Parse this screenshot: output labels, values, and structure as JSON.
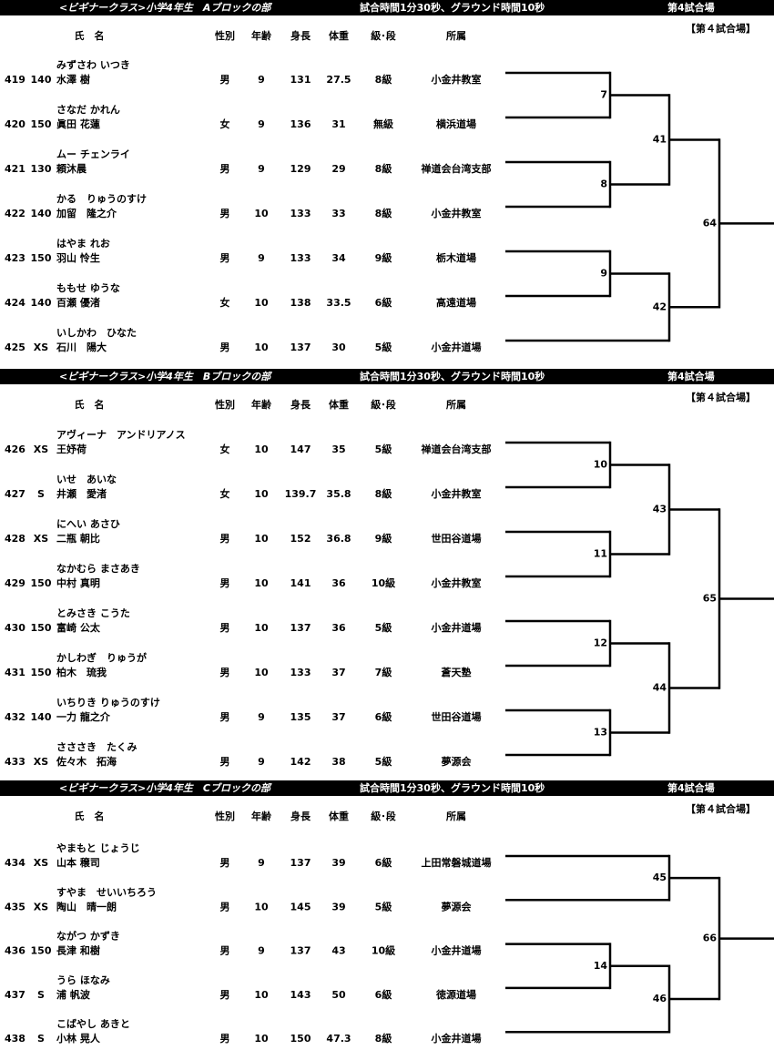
{
  "blocks": [
    {
      "title": "<ビギナークラス>小学4年生　Aブロックの部",
      "match_time": "試合時間1分30秒、グラウンド時間10秒",
      "venue": "第4試合場",
      "venue_large": "【第４試合場】",
      "columns": [
        "氏　名",
        "性別",
        "年齢",
        "身長",
        "体重",
        "級･段",
        "所属"
      ],
      "rows": [
        [
          419,
          "140",
          "みずさわ いつき",
          "水澤 樹",
          "男",
          9,
          131,
          27.5,
          "8級",
          "小金井教室"
        ],
        [
          420,
          "150",
          "さなだ かれん",
          "眞田 花蓮",
          "女",
          9,
          136,
          31,
          "無級",
          "横浜道場"
        ],
        [
          421,
          "130",
          "ムー チェンライ",
          "頼沐晨",
          "男",
          9,
          129,
          29,
          "8級",
          "禅道会台湾支部"
        ],
        [
          422,
          "140",
          "かる　りゅうのすけ",
          "加留　隆之介",
          "男",
          10,
          133,
          33,
          "8級",
          "小金井教室"
        ],
        [
          423,
          "150",
          "はやま れお",
          "羽山 怜生",
          "男",
          9,
          133,
          34,
          "9級",
          "栃木道場"
        ],
        [
          424,
          "140",
          "ももせ ゆうな",
          "百瀬 優渚",
          "女",
          10,
          138,
          33.5,
          "6級",
          "高遠道場"
        ],
        [
          425,
          "XS",
          "いしかわ　ひなた",
          "石川　陽大",
          "男",
          10,
          137,
          30,
          "5級",
          "小金井道場"
        ]
      ],
      "matches": [
        7,
        8,
        9,
        41,
        42,
        64
      ]
    },
    {
      "title": "<ビギナークラス>小学4年生　Bブロックの部",
      "match_time": "試合時間1分30秒、グラウンド時間10秒",
      "venue": "第4試合場",
      "venue_large": "【第４試合場】",
      "columns": [
        "氏　名",
        "性別",
        "年齢",
        "身長",
        "体重",
        "級･段",
        "所属"
      ],
      "rows": [
        [
          426,
          "XS",
          "アヴィーナ　アンドリアノス",
          "王妤荷",
          "女",
          10,
          147,
          35,
          "5級",
          "禅道会台湾支部"
        ],
        [
          427,
          "S",
          "いせ　あいな",
          "井瀬　愛渚",
          "女",
          10,
          139.7,
          35.8,
          "8級",
          "小金井教室"
        ],
        [
          428,
          "XS",
          "にへい あさひ",
          "二瓶 朝比",
          "男",
          10,
          152,
          36.8,
          "9級",
          "世田谷道場"
        ],
        [
          429,
          "150",
          "なかむら まさあき",
          "中村 真明",
          "男",
          10,
          141,
          36,
          "10級",
          "小金井教室"
        ],
        [
          430,
          "150",
          "とみさき こうた",
          "富崎 公太",
          "男",
          10,
          137,
          36,
          "5級",
          "小金井道場"
        ],
        [
          431,
          "150",
          "かしわぎ　りゅうが",
          "柏木　琉我",
          "男",
          10,
          133,
          37,
          "7級",
          "蒼天塾"
        ],
        [
          432,
          "140",
          "いちりき りゅうのすけ",
          "一力 龍之介",
          "男",
          9,
          135,
          37,
          "6級",
          "世田谷道場"
        ],
        [
          433,
          "XS",
          "さささき　たくみ",
          "佐々木　拓海",
          "男",
          9,
          142,
          38,
          "5級",
          "夢源会"
        ]
      ],
      "matches": [
        10,
        11,
        12,
        13,
        43,
        44,
        65
      ]
    },
    {
      "title": "<ビギナークラス>小学4年生　Cブロックの部",
      "match_time": "試合時間1分30秒、グラウンド時間10秒",
      "venue": "第4試合場",
      "venue_large": "【第４試合場】",
      "columns": [
        "氏　名",
        "性別",
        "年齢",
        "身長",
        "体重",
        "級･段",
        "所属"
      ],
      "rows": [
        [
          434,
          "XS",
          "やまもと じょうじ",
          "山本 穣司",
          "男",
          9,
          137,
          39,
          "6級",
          "上田常磐城道場"
        ],
        [
          435,
          "XS",
          "すやま　せいいちろう",
          "陶山　晴一朗",
          "男",
          10,
          145,
          39,
          "5級",
          "夢源会"
        ],
        [
          436,
          "150",
          "ながつ かずき",
          "長津 和樹",
          "男",
          9,
          137,
          43,
          "10級",
          "小金井道場"
        ],
        [
          437,
          "S",
          "うら ほなみ",
          "浦 帆波",
          "男",
          10,
          143,
          50,
          "6級",
          "徳源道場"
        ],
        [
          438,
          "S",
          "こばやし あきと",
          "小林 晃人",
          "男",
          10,
          150,
          47.3,
          "8級",
          "小金井道場"
        ]
      ],
      "matches": [
        14,
        45,
        46,
        66
      ]
    }
  ]
}
